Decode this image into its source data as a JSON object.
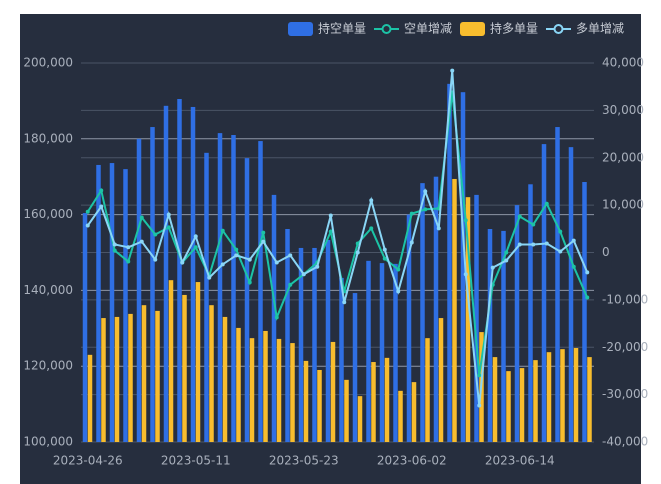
{
  "chart_data": {
    "type": "bar-line",
    "categories": [
      "2023-04-26",
      null,
      null,
      null,
      null,
      null,
      null,
      null,
      "2023-05-11",
      null,
      null,
      null,
      null,
      null,
      null,
      null,
      "2023-05-23",
      null,
      null,
      null,
      null,
      null,
      null,
      null,
      "2023-06-02",
      null,
      null,
      null,
      null,
      null,
      null,
      null,
      "2023-06-14",
      null,
      null,
      null,
      null,
      null
    ],
    "series": [
      {
        "name": "持空单量",
        "type": "bar",
        "color": "#2f6fe4",
        "values": [
          160400,
          173100,
          173600,
          172000,
          180000,
          183100,
          188700,
          190500,
          188400,
          176300,
          181500,
          181000,
          174900,
          179400,
          165200,
          156200,
          151200,
          151200,
          153300,
          143300,
          139300,
          147800,
          147200,
          147000,
          160000,
          168300,
          170000,
          194500,
          192300,
          165200,
          156200,
          155700,
          162500,
          168000,
          178600,
          183100,
          177800,
          168600
        ]
      },
      {
        "name": "空单增减",
        "type": "line",
        "axis": "y2",
        "color": "#1cc3a6",
        "values": [
          8600,
          13100,
          400,
          -1900,
          7400,
          3800,
          5300,
          -2100,
          1100,
          -4900,
          4600,
          600,
          -6300,
          4200,
          -13700,
          -6800,
          -4600,
          -2100,
          4400,
          -8200,
          1900,
          5100,
          -1300,
          -3600,
          8200,
          9100,
          9300,
          33800,
          6800,
          -25900,
          -6800,
          0,
          7600,
          5900,
          10300,
          4400,
          -3000,
          -9500
        ]
      },
      {
        "name": "持多单量",
        "type": "bar",
        "color": "#f8bd2e",
        "values": [
          123000,
          132700,
          133000,
          133800,
          136100,
          134600,
          142700,
          138800,
          142200,
          136100,
          133000,
          130100,
          127400,
          129300,
          127200,
          126100,
          121400,
          119000,
          126400,
          116400,
          112100,
          121100,
          122200,
          113500,
          115800,
          127400,
          132700,
          169400,
          164600,
          129000,
          122400,
          118700,
          119500,
          121600,
          123700,
          124500,
          124800,
          122400
        ]
      },
      {
        "name": "多单增减",
        "type": "line",
        "axis": "y2",
        "color": "#8ad6f6",
        "values": [
          5700,
          9700,
          1700,
          1100,
          2300,
          -1500,
          8000,
          -2100,
          3400,
          -5300,
          -2500,
          -600,
          -1500,
          2300,
          -2100,
          -600,
          -4600,
          -3000,
          7800,
          -10500,
          0,
          11000,
          600,
          -8200,
          2100,
          12900,
          5100,
          38400,
          -4600,
          -32300,
          -3200,
          -1700,
          1700,
          1700,
          1900,
          200,
          2500,
          -4200
        ]
      }
    ],
    "ylim": [
      100000,
      200000
    ],
    "yticks": [
      {
        "value": 100000,
        "label": "100,000"
      },
      {
        "value": 120000,
        "label": "120,000"
      },
      {
        "value": 140000,
        "label": "140,000"
      },
      {
        "value": 160000,
        "label": "160,000"
      },
      {
        "value": 180000,
        "label": "180,000"
      },
      {
        "value": 200000,
        "label": "200,000"
      }
    ],
    "y2lim": [
      -40000,
      40000
    ],
    "y2ticks": [
      {
        "value": -40000,
        "label": "-40,000"
      },
      {
        "value": -30000,
        "label": "-30,000"
      },
      {
        "value": -20000,
        "label": "-20,000"
      },
      {
        "value": -10000,
        "label": "-10,000"
      },
      0,
      {
        "value": 10000,
        "label": "10,000"
      },
      {
        "value": 20000,
        "label": "20,000"
      },
      {
        "value": 30000,
        "label": "30,000"
      },
      {
        "value": 40000,
        "label": "40,000"
      }
    ],
    "grid": true,
    "legend": "top-right"
  }
}
